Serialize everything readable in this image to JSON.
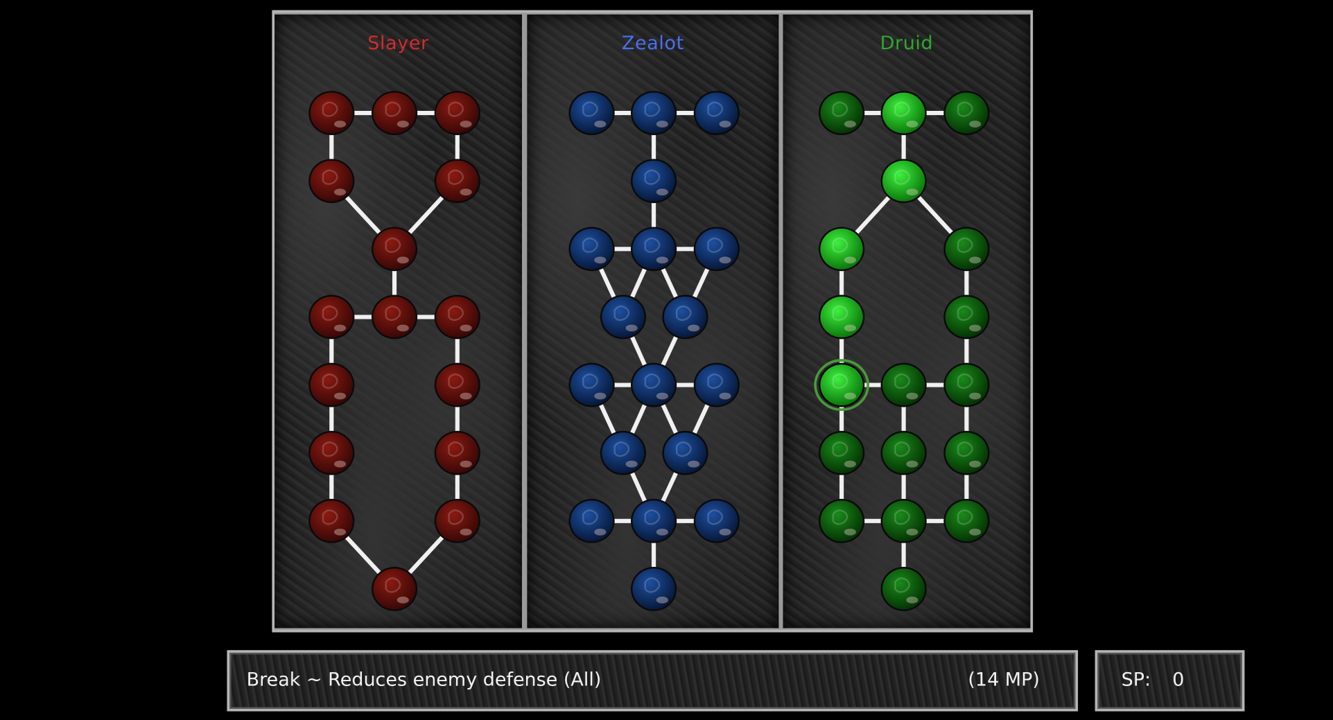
{
  "trees": [
    {
      "name": "Slayer",
      "color": "#d42b2b",
      "orb": "red",
      "nodes": [
        "locked",
        "locked",
        "locked",
        "locked",
        "locked",
        "locked",
        "locked",
        "locked",
        "locked",
        "locked",
        "locked",
        "locked",
        "locked",
        "locked",
        "locked",
        "locked"
      ]
    },
    {
      "name": "Zealot",
      "color": "#4a6ff0",
      "orb": "blue",
      "nodes": [
        "locked",
        "locked",
        "locked",
        "locked",
        "locked",
        "locked",
        "locked",
        "locked",
        "locked",
        "locked",
        "locked",
        "locked",
        "locked",
        "locked",
        "locked",
        "locked",
        "locked",
        "locked"
      ]
    },
    {
      "name": "Druid",
      "color": "#2ea82e",
      "orb": "green",
      "nodes": [
        "locked",
        "unlocked",
        "locked",
        "unlocked",
        "unlocked",
        "locked",
        "unlocked",
        "locked",
        "unlocked-selected",
        "locked",
        "locked",
        "locked",
        "locked",
        "locked",
        "locked",
        "locked",
        "locked",
        "locked"
      ]
    }
  ],
  "info": {
    "skill": "Break ~ Reduces enemy defense  (All)",
    "cost": "(14 MP)"
  },
  "sp": {
    "label": "SP:",
    "value": "0"
  }
}
